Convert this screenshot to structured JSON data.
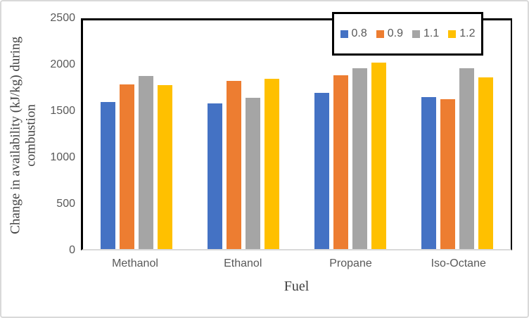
{
  "figure": {
    "background": "#FFFFFF",
    "outer_border_color": "#D9D9D9"
  },
  "chart_data": {
    "type": "bar",
    "title": "",
    "xlabel": "Fuel",
    "ylabel": "Change in availability (kJ/kg) during combustion",
    "categories": [
      "Methanol",
      "Ethanol",
      "Propane",
      "Iso-Octane"
    ],
    "series": [
      {
        "name": "0.8",
        "color": "#4472C4",
        "values": [
          1610,
          1590,
          1710,
          1665
        ]
      },
      {
        "name": "0.9",
        "color": "#ED7D31",
        "values": [
          1800,
          1840,
          1900,
          1635
        ]
      },
      {
        "name": "1.1",
        "color": "#A5A5A5",
        "values": [
          1890,
          1650,
          1980,
          1975
        ]
      },
      {
        "name": "1.2",
        "color": "#FFC000",
        "values": [
          1795,
          1865,
          2035,
          1875
        ]
      }
    ],
    "ylim": [
      0,
      2500
    ],
    "yticks": [
      0,
      500,
      1000,
      1500,
      2000,
      2500
    ],
    "grid": false,
    "legend_position": "top-right",
    "plot_border_color": "#000000",
    "baseline_color": "#D9D9D9",
    "axis_tick_text_color": "#595959",
    "axis_title_text_color": "#404040"
  }
}
